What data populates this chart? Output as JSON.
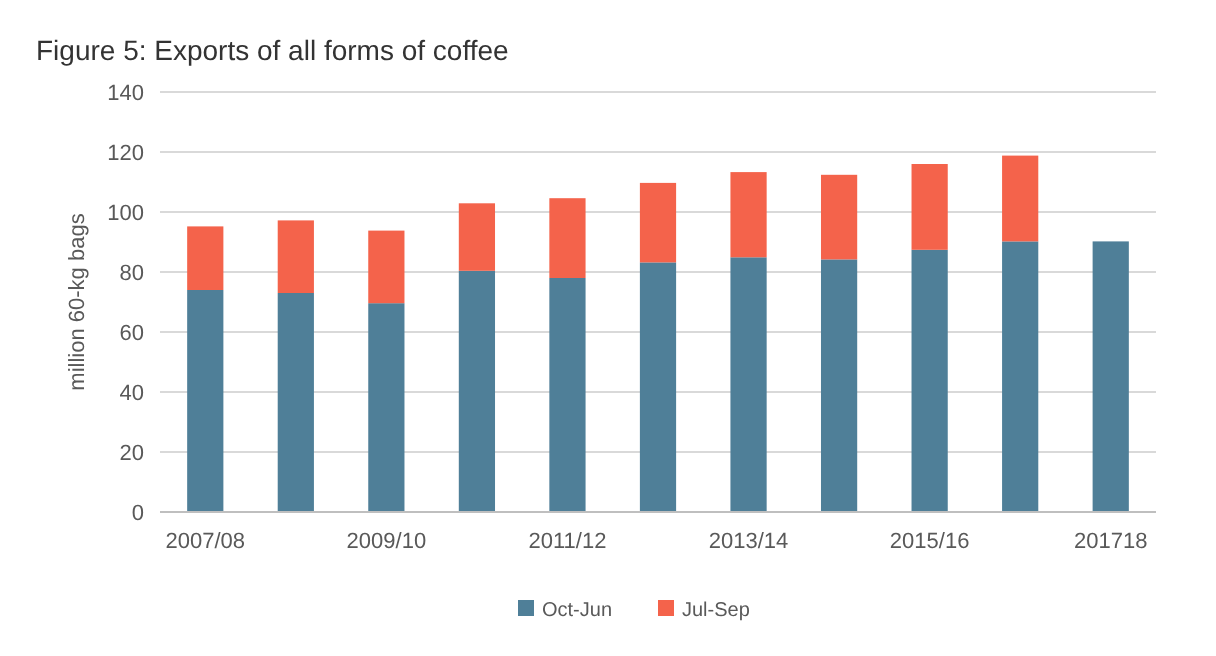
{
  "chart_data": {
    "type": "bar",
    "title": "Figure 5: Exports of all forms of coffee",
    "ylabel": "million 60-kg bags",
    "categories": [
      "2007/08",
      null,
      "2009/10",
      null,
      "2011/12",
      null,
      "2013/14",
      null,
      "2015/16",
      null,
      "201718"
    ],
    "series": [
      {
        "name": "Oct-Jun",
        "color": "#4f7f98",
        "values": [
          74,
          73,
          69.6,
          80.4,
          78,
          83.2,
          84.9,
          84.2,
          87.4,
          90.2,
          90.2
        ]
      },
      {
        "name": "Jul-Sep",
        "color": "#f4634b",
        "values": [
          21.2,
          24.2,
          24.2,
          22.5,
          26.6,
          26.5,
          28.4,
          28.2,
          28.6,
          28.6,
          null
        ]
      }
    ],
    "stacked": true,
    "ylim": [
      0,
      140
    ],
    "yticks": [
      0,
      20,
      40,
      60,
      80,
      100,
      120,
      140
    ],
    "grid": "y",
    "legend": "bottom"
  }
}
